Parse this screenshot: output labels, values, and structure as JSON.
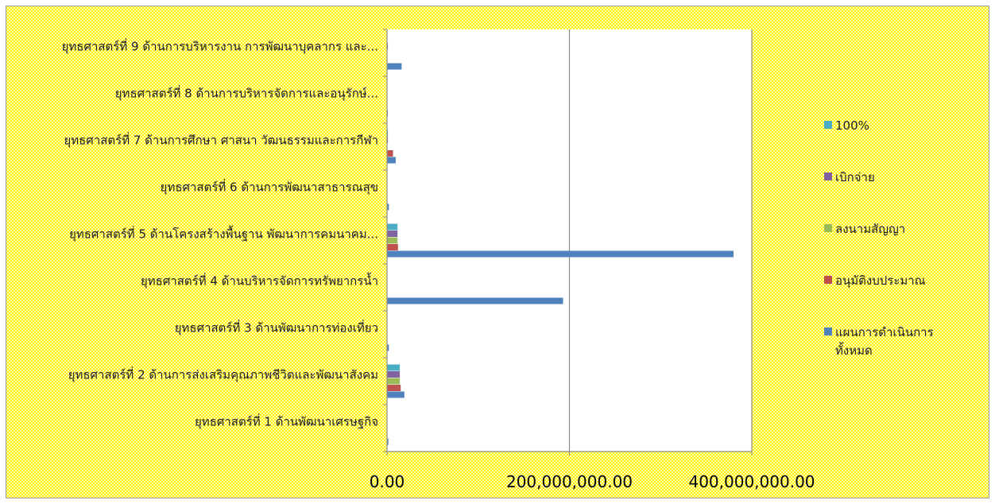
{
  "chart_data": {
    "type": "bar",
    "orientation": "horizontal",
    "title": "",
    "xlabel": "",
    "ylabel": "",
    "xlim": [
      0,
      400000000
    ],
    "x_ticks": [
      0,
      200000000,
      400000000
    ],
    "x_tick_labels": [
      "0.00",
      "200,000,000.00",
      "400,000,000.00"
    ],
    "grid": "vertical major gridlines",
    "legend_position": "right",
    "categories": [
      "ยุทธศาสตร์ที่ 1 ด้านพัฒนาเศรษฐกิจ",
      "ยุทธศาสตร์ที่ 2 ด้านการส่งเสริมคุณภาพชีวิตและพัฒนาสังคม",
      "ยุทธศาสตร์ที่ 3 ด้านพัฒนาการท่องเที่ยว",
      "ยุทธศาสตร์ที่ 4 ด้านบริหารจัดการทรัพยากรน้ำ",
      "ยุทธศาสตร์ที่ 5 ด้านโครงสร้างพื้นฐาน  พัฒนาการคมนาคม...",
      "ยุทธศาสตร์ที่ 6 ด้านการพัฒนาสาธารณสุข",
      "ยุทธศาสตร์ที่ 7 ด้านการศึกษา  ศาสนา  วัฒนธรรมและการกีฬา",
      "ยุทธศาสตร์ที่ 8 ด้านการบริหารจัดการและอนุรักษ์...",
      "ยุทธศาสตร์ที่ 9 ด้านการบริหารงาน  การพัฒนาบุคลากร และ..."
    ],
    "series": [
      {
        "name": "แผนการดำเนินการทั้งหมด",
        "label_lines": [
          "แผนการดำเนินการ",
          "ทั้งหมด"
        ],
        "color": "#4f81bd",
        "values": [
          1500000,
          19000000,
          2000000,
          193000000,
          380000000,
          2000000,
          9500000,
          500000,
          16000000
        ]
      },
      {
        "name": "อนุมัติงบประมาณ",
        "label_lines": [
          "อนุมัติงบประมาณ"
        ],
        "color": "#c0504d",
        "values": [
          0,
          15000000,
          0,
          0,
          12000000,
          0,
          6500000,
          0,
          0
        ]
      },
      {
        "name": "ลงนามสัญญา",
        "label_lines": [
          "ลงนามสัญญา"
        ],
        "color": "#9bbb59",
        "values": [
          0,
          14000000,
          0,
          0,
          11500000,
          0,
          0,
          0,
          0
        ]
      },
      {
        "name": "เบิกจ่าย",
        "label_lines": [
          "เบิกจ่าย"
        ],
        "color": "#8064a2",
        "values": [
          0,
          14000000,
          0,
          0,
          11500000,
          0,
          1000000,
          0,
          1000000
        ]
      },
      {
        "name": "100%",
        "label_lines": [
          "100%"
        ],
        "color": "#4bacc6",
        "values": [
          0,
          14000000,
          0,
          0,
          11500000,
          0,
          1000000,
          0,
          0
        ]
      }
    ]
  }
}
